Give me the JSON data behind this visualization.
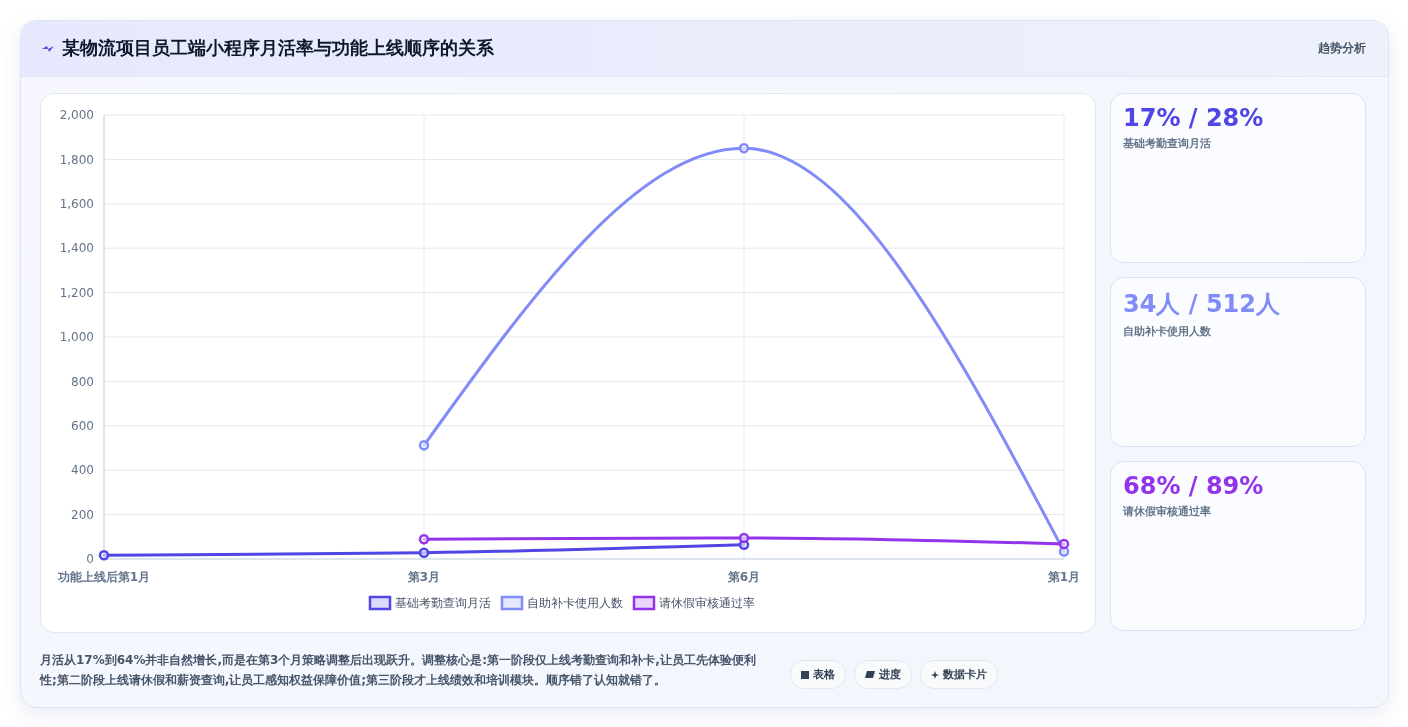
{
  "chart_data": [
    {
      "type": "other",
      "title": "某物流项目员工端小程序月活率与功能上线顺序的关系",
      "subtitle": "趋势分析"
    },
    {
      "type": "line",
      "categories": [
        "功能上线后第1月",
        "第3月",
        "第6月",
        "第1月"
      ],
      "series": [
        {
          "name": "基础考勤查询月活",
          "color": "#4f46e5",
          "values": [
            17,
            28,
            64,
            null
          ]
        },
        {
          "name": "自助补卡使用人数",
          "color": "#818cf8",
          "values": [
            null,
            512,
            1850,
            34
          ]
        },
        {
          "name": "请休假审核通过率",
          "color": "#9333ea",
          "values": [
            null,
            89,
            95,
            68
          ]
        }
      ],
      "ylim": [
        0,
        2000
      ],
      "yticks": [
        0,
        200,
        400,
        600,
        800,
        {
          "value": 1000,
          "label": "1,000"
        },
        {
          "value": 1200,
          "label": "1,200"
        },
        {
          "value": 1400,
          "label": "1,400"
        },
        {
          "value": 1600,
          "label": "1,600"
        },
        {
          "value": 1800,
          "label": "1,800"
        },
        {
          "value": 2000,
          "label": "2,000"
        }
      ],
      "grid": true,
      "legend": "bottom",
      "marker": "circle",
      "annotations": [
        "月活从17%到64%并非自然增长,而是在第3个月策略调整后出现跃升。调整核心是:第一阶段仅上线考勤查询和补卡,让员工先体验便利性;第二阶段上线请休假和薪资查询,让员工感知权益保障价值;第三阶段才上线绩效和培训模块。顺序错了认知就错了。",
        "表格",
        "进度",
        "数据卡片"
      ]
    },
    {
      "type": "other",
      "title": "17% / 28%",
      "subtitle": "基础考勤查询月活",
      "color": "#4f46e5"
    },
    {
      "type": "other",
      "title": "34人 / 512人",
      "subtitle": "自助补卡使用人数",
      "color": "#818cf8"
    },
    {
      "type": "other",
      "title": "68% / 89%",
      "subtitle": "请休假审核通过率",
      "color": "#9333ea"
    }
  ]
}
